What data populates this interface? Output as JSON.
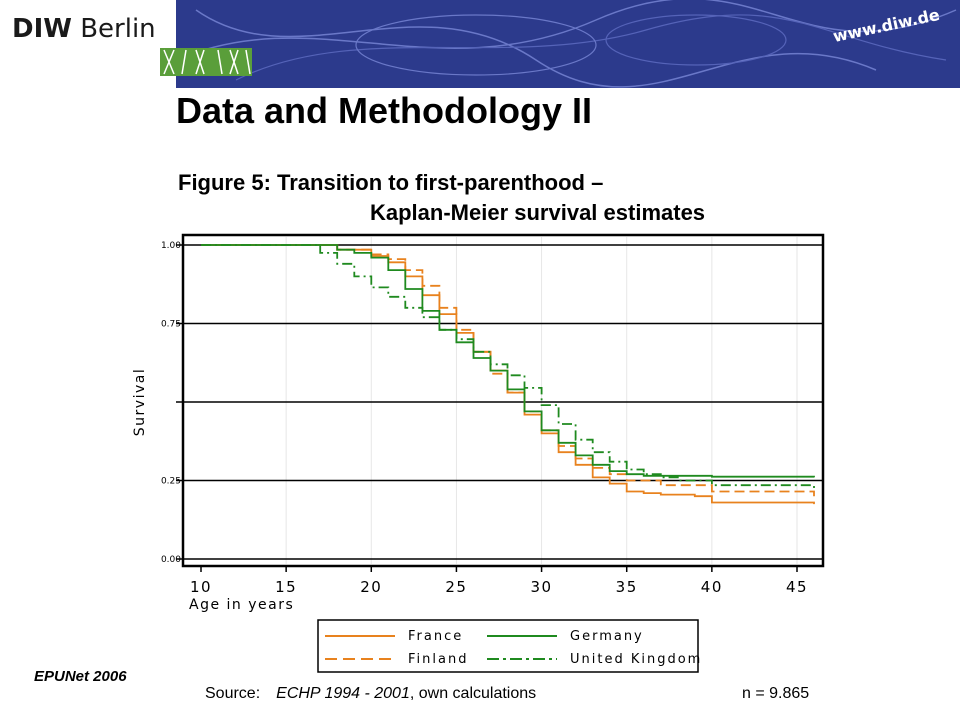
{
  "header": {
    "logo_bold": "DIW",
    "logo_rest": "Berlin",
    "url": "www.diw.de"
  },
  "slide": {
    "title": "Data and Methodology II",
    "figure_title_line1": "Figure 5: Transition to first-parenthood –",
    "figure_title_line2": "Kaplan-Meier survival estimates"
  },
  "footer": {
    "left": "EPUNet 2006",
    "source_label": "Source:",
    "source_italic": "ECHP 1994 - 2001",
    "source_rest": ", own calculations",
    "n": "n = 9.865"
  },
  "colors": {
    "banner": "#2c3a8c",
    "france": "#e8821e",
    "finland": "#e8821e",
    "germany": "#1f8a1f",
    "uk": "#1f8a1f"
  },
  "chart_data": {
    "type": "line",
    "title": "",
    "xlabel": "Age in years",
    "ylabel": "Survival",
    "xlim": [
      10,
      46
    ],
    "ylim": [
      0,
      1
    ],
    "x_ticks": [
      "10",
      "15",
      "20",
      "25",
      "30",
      "35",
      "40",
      "45"
    ],
    "y_ticks": [
      {
        "value": 1.0,
        "label": "1.00"
      },
      {
        "value": 0.75,
        "label": "0.75"
      },
      {
        "value": 0.5,
        "label": ""
      },
      {
        "value": 0.25,
        "label": "0.25"
      },
      {
        "value": 0.0,
        "label": "0.00"
      }
    ],
    "grid": true,
    "legend_position": "bottom",
    "series": [
      {
        "name": "France",
        "style": "solid",
        "color": "#e8821e",
        "x": [
          10,
          16,
          18,
          20,
          21,
          22,
          23,
          24,
          25,
          26,
          27,
          28,
          29,
          30,
          31,
          32,
          33,
          34,
          35,
          36,
          37,
          39,
          40,
          46
        ],
        "y": [
          1.0,
          1.0,
          0.985,
          0.965,
          0.945,
          0.9,
          0.84,
          0.78,
          0.72,
          0.66,
          0.6,
          0.53,
          0.46,
          0.4,
          0.34,
          0.3,
          0.26,
          0.24,
          0.215,
          0.21,
          0.205,
          0.2,
          0.18,
          0.175
        ]
      },
      {
        "name": "Finland",
        "style": "dashed",
        "color": "#e8821e",
        "x": [
          10,
          16,
          18,
          20,
          21,
          22,
          23,
          24,
          25,
          26,
          27,
          28,
          29,
          30,
          31,
          32,
          33,
          34,
          35,
          37,
          40,
          46
        ],
        "y": [
          1.0,
          1.0,
          0.985,
          0.97,
          0.955,
          0.92,
          0.87,
          0.8,
          0.73,
          0.66,
          0.59,
          0.53,
          0.47,
          0.41,
          0.36,
          0.32,
          0.29,
          0.27,
          0.25,
          0.235,
          0.215,
          0.2
        ]
      },
      {
        "name": "Germany",
        "style": "solid",
        "color": "#1f8a1f",
        "x": [
          10,
          16,
          18,
          19,
          20,
          21,
          22,
          23,
          24,
          25,
          26,
          27,
          28,
          29,
          30,
          31,
          32,
          33,
          34,
          35,
          36,
          40,
          46
        ],
        "y": [
          1.0,
          1.0,
          0.985,
          0.975,
          0.96,
          0.92,
          0.86,
          0.79,
          0.73,
          0.69,
          0.64,
          0.6,
          0.54,
          0.47,
          0.41,
          0.37,
          0.33,
          0.3,
          0.28,
          0.27,
          0.265,
          0.262,
          0.26
        ]
      },
      {
        "name": "United Kingdom",
        "style": "dashdot",
        "color": "#1f8a1f",
        "x": [
          10,
          16,
          17,
          18,
          19,
          20,
          21,
          22,
          23,
          24,
          25,
          26,
          27,
          28,
          29,
          30,
          31,
          32,
          33,
          34,
          35,
          36,
          37,
          38,
          40,
          46
        ],
        "y": [
          1.0,
          1.0,
          0.975,
          0.94,
          0.9,
          0.865,
          0.835,
          0.8,
          0.77,
          0.73,
          0.7,
          0.66,
          0.62,
          0.585,
          0.545,
          0.49,
          0.43,
          0.38,
          0.34,
          0.31,
          0.285,
          0.27,
          0.26,
          0.25,
          0.235,
          0.22
        ]
      }
    ]
  }
}
